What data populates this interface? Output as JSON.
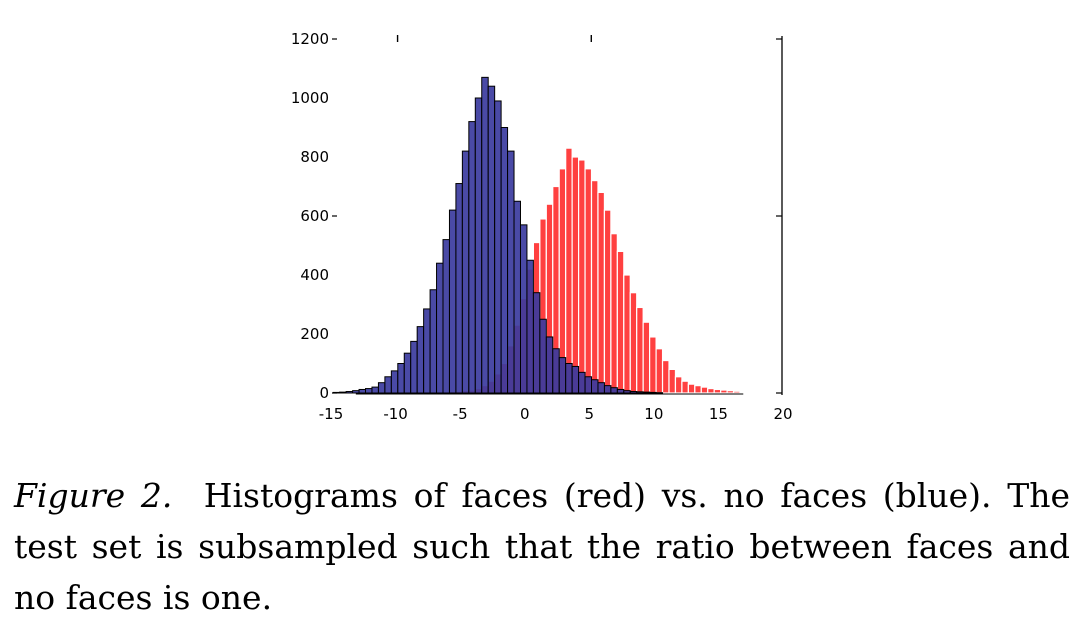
{
  "chart_data": {
    "type": "bar",
    "x_ticks": [
      "-15",
      "-10",
      "-5",
      "0",
      "5",
      "10",
      "15",
      "20"
    ],
    "y_ticks": [
      "0",
      "200",
      "400",
      "600",
      "800",
      "1000",
      "1200"
    ],
    "xlim": [
      -15,
      20
    ],
    "ylim": [
      0,
      1200
    ],
    "bin_width": 0.5,
    "series": [
      {
        "color": "#3b3b9e",
        "edge": "#000000",
        "x": [
          -14.5,
          -14,
          -13.5,
          -13,
          -12.5,
          -12,
          -11.5,
          -11,
          -10.5,
          -10,
          -9.5,
          -9,
          -8.5,
          -8,
          -7.5,
          -7,
          -6.5,
          -6,
          -5.5,
          -5,
          -4.5,
          -4,
          -3.5,
          -3,
          -2.5,
          -2,
          -1.5,
          -1,
          -0.5,
          0,
          0.5,
          1,
          1.5,
          2,
          2.5,
          3,
          3.5,
          4,
          4.5,
          5,
          5.5,
          6,
          6.5,
          7,
          7.5,
          8,
          8.5,
          9,
          9.5,
          10,
          10.5
        ],
        "values": [
          2,
          3,
          5,
          8,
          12,
          15,
          20,
          35,
          55,
          75,
          100,
          135,
          175,
          225,
          285,
          350,
          440,
          520,
          620,
          710,
          820,
          920,
          1000,
          1070,
          1040,
          990,
          900,
          820,
          650,
          570,
          450,
          340,
          250,
          190,
          150,
          120,
          100,
          90,
          70,
          55,
          45,
          35,
          25,
          18,
          12,
          8,
          5,
          4,
          3,
          2,
          1
        ]
      },
      {
        "color": "#ff4040",
        "edge": "#ffffff",
        "x": [
          -7,
          -6.5,
          -6,
          -5.5,
          -5,
          -4.5,
          -4,
          -3.5,
          -3,
          -2.5,
          -2,
          -1.5,
          -1,
          -0.5,
          0,
          0.5,
          1,
          1.5,
          2,
          2.5,
          3,
          3.5,
          4,
          4.5,
          5,
          5.5,
          6,
          6.5,
          7,
          7.5,
          8,
          8.5,
          9,
          9.5,
          10,
          10.5,
          11,
          11.5,
          12,
          12.5,
          13,
          13.5,
          14,
          14.5,
          15,
          15.5,
          16,
          16.5,
          17
        ],
        "values": [
          2,
          3,
          4,
          5,
          6,
          8,
          10,
          15,
          25,
          40,
          65,
          100,
          160,
          230,
          320,
          420,
          510,
          590,
          640,
          700,
          760,
          830,
          800,
          790,
          760,
          720,
          680,
          620,
          540,
          480,
          400,
          340,
          290,
          240,
          190,
          150,
          110,
          80,
          55,
          40,
          30,
          25,
          20,
          15,
          12,
          10,
          8,
          6,
          2
        ]
      }
    ]
  },
  "caption": {
    "label": "Figure 2.",
    "text": "Histograms of faces (red) vs.  no faces (blue). The test set is subsampled such that the ratio between faces and no faces is one."
  }
}
